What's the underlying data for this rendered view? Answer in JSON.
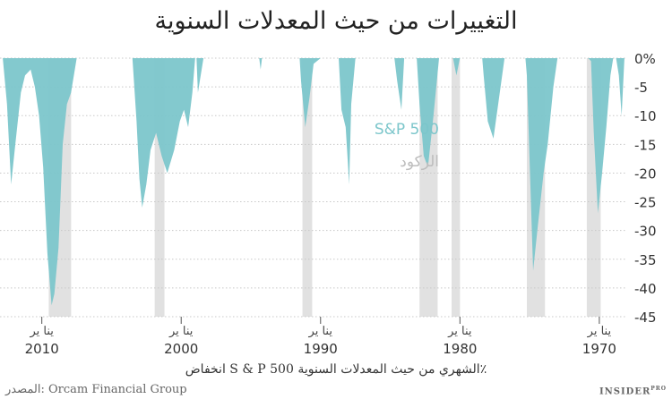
{
  "chart_data": {
    "type": "area",
    "title": "التغييرات من حيث المعدلات السنوية",
    "xlabel": "انخفاض S & P 500 الشهري من حيث المعدلات السنوية٪",
    "ylabel": "",
    "x_axis_direction": "right-to-left",
    "xlim": [
      1968,
      2013
    ],
    "ylim": [
      -45,
      0
    ],
    "y_ticks": [
      0,
      -5,
      -10,
      -15,
      -20,
      -25,
      -30,
      -35,
      -40,
      -45
    ],
    "y_tick_labels": [
      "0%",
      "-5",
      "-10",
      "-15",
      "-20",
      "-25",
      "-30",
      "-35",
      "-40",
      "-45"
    ],
    "x_ticks": [
      1970,
      1980,
      1990,
      2000,
      2010
    ],
    "x_tick_month_label": "ينا ير",
    "grid": true,
    "legend_placement": "center inside plot",
    "legend": [
      {
        "name": "S&P 500",
        "color": "#7cc6cb"
      },
      {
        "name": "الركود",
        "color": "#c8c8c8"
      }
    ],
    "recessions": [
      [
        1969.9,
        1970.9
      ],
      [
        1973.9,
        1975.2
      ],
      [
        1980.0,
        1980.6
      ],
      [
        1981.6,
        1982.9
      ],
      [
        1990.6,
        1991.3
      ],
      [
        2001.2,
        2001.9
      ],
      [
        2007.9,
        2009.5
      ]
    ],
    "series": [
      {
        "name": "S&P 500",
        "color": "#7cc6cb",
        "points": [
          [
            1968.2,
            0
          ],
          [
            1968.4,
            -10
          ],
          [
            1968.6,
            -3
          ],
          [
            1968.8,
            0
          ],
          [
            1969.0,
            0
          ],
          [
            1969.2,
            -3
          ],
          [
            1969.5,
            -12
          ],
          [
            1969.8,
            -20
          ],
          [
            1970.1,
            -27
          ],
          [
            1970.4,
            -13
          ],
          [
            1970.6,
            -0.5
          ],
          [
            1970.8,
            0
          ],
          [
            1973.0,
            0
          ],
          [
            1973.3,
            -5
          ],
          [
            1973.7,
            -15
          ],
          [
            1974.0,
            -20
          ],
          [
            1974.4,
            -29
          ],
          [
            1974.75,
            -37
          ],
          [
            1975.0,
            -18
          ],
          [
            1975.2,
            -3
          ],
          [
            1975.3,
            0
          ],
          [
            1976.8,
            0
          ],
          [
            1977.2,
            -7
          ],
          [
            1977.6,
            -14
          ],
          [
            1978.0,
            -11
          ],
          [
            1978.3,
            -3
          ],
          [
            1978.4,
            0
          ],
          [
            1980.0,
            0
          ],
          [
            1980.25,
            -3
          ],
          [
            1980.5,
            0
          ],
          [
            1981.5,
            0
          ],
          [
            1981.9,
            -10
          ],
          [
            1982.3,
            -19
          ],
          [
            1982.6,
            -17
          ],
          [
            1982.9,
            -8
          ],
          [
            1983.1,
            0
          ],
          [
            1984.0,
            0
          ],
          [
            1984.2,
            -9
          ],
          [
            1984.5,
            -4
          ],
          [
            1984.7,
            0
          ],
          [
            1987.5,
            0
          ],
          [
            1987.8,
            -8
          ],
          [
            1987.95,
            -22
          ],
          [
            1988.2,
            -12
          ],
          [
            1988.5,
            -9
          ],
          [
            1988.7,
            0
          ],
          [
            1990.0,
            0
          ],
          [
            1990.5,
            -1
          ],
          [
            1990.8,
            -7
          ],
          [
            1991.1,
            -12
          ],
          [
            1991.4,
            -4
          ],
          [
            1991.5,
            0
          ],
          [
            1994.2,
            0
          ],
          [
            1994.3,
            -2
          ],
          [
            1994.4,
            0
          ],
          [
            1998.4,
            0
          ],
          [
            1998.6,
            -3
          ],
          [
            1998.8,
            -6
          ],
          [
            1998.9,
            0
          ],
          [
            1999.0,
            0
          ],
          [
            1999.2,
            -6
          ],
          [
            1999.5,
            -12
          ],
          [
            1999.8,
            -9
          ],
          [
            2000.1,
            -11
          ],
          [
            2000.5,
            -16
          ],
          [
            2001.0,
            -20
          ],
          [
            2001.4,
            -17
          ],
          [
            2001.8,
            -13
          ],
          [
            2002.2,
            -16
          ],
          [
            2002.5,
            -22
          ],
          [
            2002.8,
            -26
          ],
          [
            2003.0,
            -21
          ],
          [
            2003.2,
            -11
          ],
          [
            2003.5,
            0
          ],
          [
            2007.5,
            0
          ],
          [
            2007.9,
            -6
          ],
          [
            2008.2,
            -8
          ],
          [
            2008.5,
            -15
          ],
          [
            2008.8,
            -33
          ],
          [
            2009.1,
            -41
          ],
          [
            2009.3,
            -43
          ],
          [
            2009.6,
            -34
          ],
          [
            2009.9,
            -19
          ],
          [
            2010.2,
            -10
          ],
          [
            2010.5,
            -5
          ],
          [
            2010.8,
            -2
          ],
          [
            2011.2,
            -3
          ],
          [
            2011.5,
            -6
          ],
          [
            2011.9,
            -15
          ],
          [
            2012.2,
            -22
          ],
          [
            2012.5,
            -8
          ],
          [
            2012.8,
            0
          ]
        ]
      }
    ]
  },
  "footer": {
    "source": "المصدر: Orcam Financial Group",
    "logo": "INSIDER",
    "logo_sup": "PRO"
  }
}
